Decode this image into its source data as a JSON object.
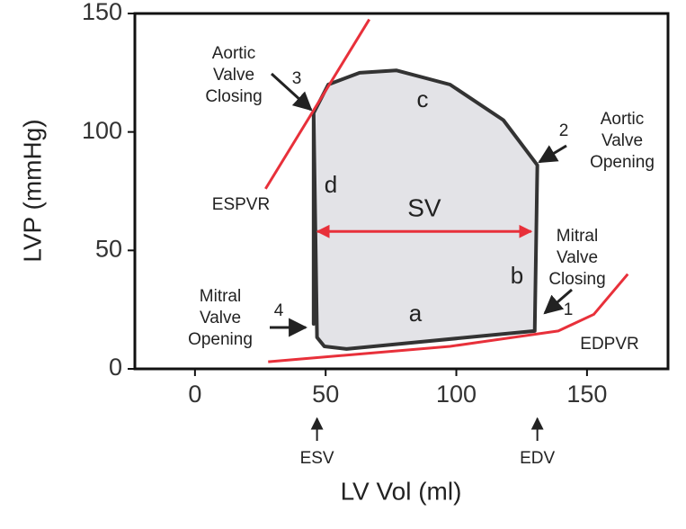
{
  "chart_data": {
    "type": "line",
    "xlabel": "LV Vol (ml)",
    "ylabel": "LVP (mmHg)",
    "xlim": [
      -23,
      181
    ],
    "ylim": [
      0,
      150
    ],
    "xticks": [
      0,
      50,
      100,
      150
    ],
    "yticks": [
      0,
      50,
      100,
      150
    ],
    "series": [
      {
        "color": "#333333",
        "fill": "#e3e3e7",
        "x": [
          45.4,
          46.7,
          49.5,
          58,
          130,
          131,
          118,
          97.6,
          77,
          63,
          51,
          45.4,
          45.4
        ],
        "values": [
          108,
          13.3,
          9.5,
          8.4,
          16,
          86,
          105,
          120,
          126,
          125,
          120,
          108,
          19
        ]
      },
      {
        "name": "ESPVR",
        "color": "#e8303a",
        "x": [
          27,
          66.7
        ],
        "values": [
          76,
          147.5
        ]
      },
      {
        "name": "EDPVR",
        "color": "#e8303a",
        "x": [
          28,
          97.6,
          139,
          152.6,
          165.6
        ],
        "values": [
          3,
          9.5,
          16,
          23,
          40
        ]
      }
    ],
    "arrow": {
      "label": "SV",
      "x": [
        45.5,
        130
      ],
      "y": 58,
      "color": "#e8303a"
    },
    "markers": [
      {
        "label": "ESV",
        "x": 46.7
      },
      {
        "label": "EDV",
        "x": 131
      }
    ],
    "annotations": [
      [
        "a"
      ],
      [
        "b"
      ],
      [
        "c"
      ],
      [
        "d"
      ],
      [
        "1"
      ],
      [
        "2"
      ],
      [
        "3"
      ],
      [
        "4"
      ],
      [
        "Aortic",
        "Valve",
        "Closing"
      ],
      [
        "Aortic",
        "Valve",
        "Opening"
      ],
      [
        "Mitral",
        "Valve",
        "Closing"
      ],
      [
        "Mitral",
        "Valve",
        "Opening"
      ]
    ]
  }
}
